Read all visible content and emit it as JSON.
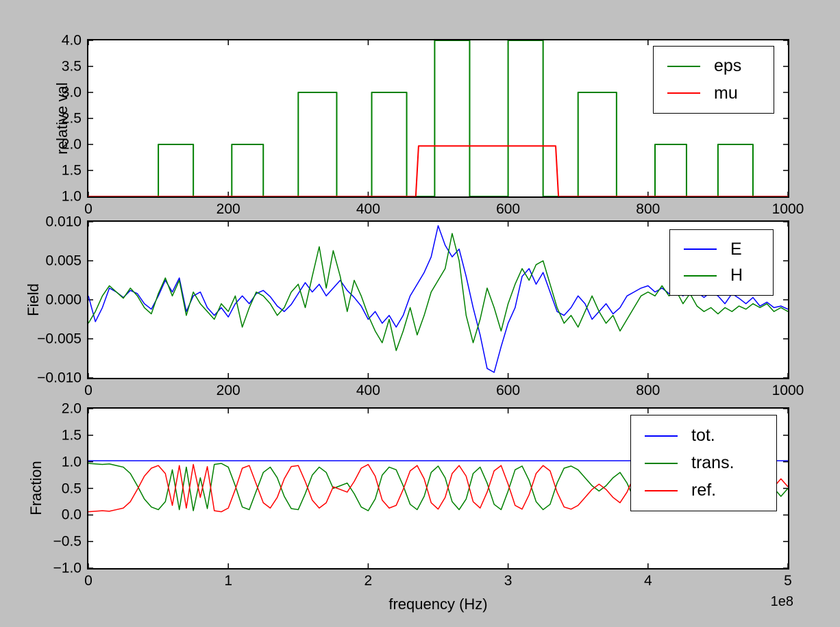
{
  "figure": {
    "background": "#c0c0c0",
    "axes_background": "#ffffff",
    "axis_color": "#000000"
  },
  "chart_data": [
    {
      "type": "line",
      "title": "",
      "ylabel": "relative val",
      "xlabel": "",
      "xlim": [
        0,
        1000
      ],
      "ylim": [
        1.0,
        4.0
      ],
      "grid": false,
      "xticks": [
        0,
        200,
        400,
        600,
        800,
        1000
      ],
      "xtick_labels": [
        "0",
        "200",
        "400",
        "600",
        "800",
        "1000"
      ],
      "yticks": [
        1.0,
        1.5,
        2.0,
        2.5,
        3.0,
        3.5,
        4.0
      ],
      "ytick_labels": [
        "1.0",
        "1.5",
        "2.0",
        "2.5",
        "3.0",
        "3.5",
        "4.0"
      ],
      "legend_position": "upper right",
      "legend": [
        {
          "label": "eps",
          "color": "#008000"
        },
        {
          "label": "mu",
          "color": "#ff0000"
        }
      ],
      "series": [
        {
          "name": "eps",
          "color": "#008000",
          "width": 2,
          "x": [
            0,
            100,
            100,
            150,
            150,
            205,
            205,
            250,
            250,
            300,
            300,
            355,
            355,
            405,
            405,
            455,
            455,
            495,
            495,
            545,
            545,
            600,
            600,
            650,
            650,
            700,
            700,
            755,
            755,
            810,
            810,
            855,
            855,
            900,
            900,
            950,
            950,
            1000
          ],
          "y": [
            1,
            1,
            2,
            2,
            1,
            1,
            2,
            2,
            1,
            1,
            3,
            3,
            1,
            1,
            3,
            3,
            1,
            1,
            4,
            4,
            1,
            1,
            4,
            4,
            1,
            1,
            3,
            3,
            1,
            1,
            2,
            2,
            1,
            1,
            2,
            2,
            1,
            1
          ]
        },
        {
          "name": "mu",
          "color": "#ff0000",
          "width": 2,
          "x": [
            0,
            468,
            472,
            668,
            672,
            1000
          ],
          "y": [
            1,
            1,
            1.97,
            1.97,
            1,
            1
          ]
        }
      ]
    },
    {
      "type": "line",
      "title": "",
      "ylabel": "Field",
      "xlabel": "",
      "xlim": [
        0,
        1000
      ],
      "ylim": [
        -0.01,
        0.01
      ],
      "grid": false,
      "xticks": [
        0,
        200,
        400,
        600,
        800,
        1000
      ],
      "xtick_labels": [
        "0",
        "200",
        "400",
        "600",
        "800",
        "1000"
      ],
      "yticks": [
        -0.01,
        -0.005,
        0,
        0.005,
        0.01
      ],
      "ytick_labels": [
        "−0.010",
        "−0.005",
        "0.000",
        "0.005",
        "0.010"
      ],
      "legend_position": "upper right",
      "legend": [
        {
          "label": "E",
          "color": "#0000ff"
        },
        {
          "label": "H",
          "color": "#008000"
        }
      ],
      "series": [
        {
          "name": "E",
          "color": "#0000ff",
          "width": 1.5,
          "x_start": 0,
          "x_step": 10,
          "y_scale": 0.001,
          "y": [
            0.5,
            -2.8,
            -1.0,
            1.5,
            1.0,
            0.3,
            1.2,
            0.8,
            -0.5,
            -1.2,
            0.5,
            2.5,
            1.0,
            2.8,
            -1.5,
            0.5,
            1.0,
            -1.0,
            -2.0,
            -1.0,
            -2.2,
            -0.5,
            0.5,
            -0.5,
            0.8,
            1.2,
            0.4,
            -0.8,
            -1.5,
            -0.6,
            0.8,
            2.2,
            1.0,
            2.0,
            0.5,
            1.5,
            2.5,
            1.2,
            0.3,
            -0.8,
            -2.5,
            -1.5,
            -3.0,
            -2.0,
            -3.5,
            -2.0,
            0.5,
            2.0,
            3.5,
            5.5,
            9.5,
            7.0,
            5.5,
            6.5,
            3.0,
            -1.0,
            -4.5,
            -8.8,
            -9.3,
            -6.0,
            -3.0,
            -1.0,
            3.0,
            4.0,
            2.0,
            3.5,
            1.0,
            -1.5,
            -2.0,
            -1.0,
            0.5,
            -0.5,
            -2.5,
            -1.5,
            -0.5,
            -1.8,
            -1.0,
            0.5,
            1.0,
            1.5,
            1.8,
            1.0,
            1.5,
            0.8,
            1.2,
            0.5,
            1.5,
            1.0,
            0.3,
            1.0,
            0.5,
            -0.5,
            0.8,
            0.2,
            -0.5,
            0.3,
            -0.8,
            -0.3,
            -1.0,
            -0.8,
            -1.2
          ]
        },
        {
          "name": "H",
          "color": "#008000",
          "width": 1.5,
          "x_start": 0,
          "x_step": 10,
          "y_scale": 0.001,
          "y": [
            -3.0,
            -1.5,
            0.5,
            1.8,
            1.0,
            0.2,
            1.5,
            0.5,
            -1.0,
            -1.8,
            0.8,
            2.8,
            0.5,
            2.5,
            -2.0,
            1.0,
            -0.5,
            -1.5,
            -2.5,
            -0.5,
            -1.5,
            0.5,
            -3.5,
            -1.0,
            1.0,
            0.5,
            -0.5,
            -2.0,
            -1.0,
            1.0,
            2.0,
            -1.0,
            3.0,
            6.8,
            1.5,
            6.3,
            3.0,
            -1.5,
            2.5,
            0.5,
            -2.0,
            -4.0,
            -5.5,
            -2.5,
            -6.5,
            -4.0,
            -1.0,
            -4.5,
            -2.0,
            1.0,
            2.5,
            4.0,
            8.5,
            5.0,
            -2.0,
            -5.5,
            -2.5,
            1.5,
            -1.0,
            -4.0,
            -0.5,
            2.0,
            4.0,
            2.5,
            4.5,
            5.0,
            2.0,
            -1.0,
            -3.0,
            -2.0,
            -3.5,
            -1.5,
            0.5,
            -1.5,
            -3.0,
            -2.0,
            -4.0,
            -2.5,
            -1.0,
            0.5,
            1.0,
            0.5,
            1.8,
            0.5,
            1.2,
            -0.5,
            0.8,
            -0.8,
            -1.5,
            -1.0,
            -1.8,
            -1.0,
            -1.5,
            -0.8,
            -1.2,
            -0.5,
            -1.0,
            -0.5,
            -1.5,
            -1.0,
            -1.5
          ]
        }
      ]
    },
    {
      "type": "line",
      "title": "",
      "ylabel": "Fraction",
      "xlabel": "frequency (Hz)",
      "offset_label": "1e8",
      "xlim": [
        0,
        5
      ],
      "ylim": [
        -1.0,
        2.0
      ],
      "grid": false,
      "xticks": [
        0,
        1,
        2,
        3,
        4,
        5
      ],
      "xtick_labels": [
        "0",
        "1",
        "2",
        "3",
        "4",
        "5"
      ],
      "yticks": [
        -1.0,
        -0.5,
        0,
        0.5,
        1.0,
        1.5,
        2.0
      ],
      "ytick_labels": [
        "−1.0",
        "−0.5",
        "0.0",
        "0.5",
        "1.0",
        "1.5",
        "2.0"
      ],
      "legend_position": "upper right",
      "legend": [
        {
          "label": "tot.",
          "color": "#0000ff"
        },
        {
          "label": "trans.",
          "color": "#008000"
        },
        {
          "label": "ref.",
          "color": "#ff0000"
        }
      ],
      "series": [
        {
          "name": "tot",
          "color": "#0000ff",
          "width": 1.5,
          "x": [
            0,
            5
          ],
          "y": [
            1.02,
            1.02
          ]
        },
        {
          "name": "trans",
          "color": "#008000",
          "width": 1.5,
          "x_start": 0,
          "x_step": 0.05,
          "y": [
            0.97,
            0.96,
            0.95,
            0.96,
            0.93,
            0.9,
            0.78,
            0.55,
            0.3,
            0.15,
            0.1,
            0.25,
            0.85,
            0.1,
            0.9,
            0.08,
            0.7,
            0.12,
            0.95,
            0.97,
            0.9,
            0.55,
            0.15,
            0.1,
            0.45,
            0.8,
            0.9,
            0.7,
            0.35,
            0.12,
            0.1,
            0.4,
            0.75,
            0.9,
            0.8,
            0.5,
            0.55,
            0.6,
            0.4,
            0.15,
            0.08,
            0.3,
            0.75,
            0.9,
            0.85,
            0.55,
            0.2,
            0.1,
            0.35,
            0.8,
            0.92,
            0.7,
            0.25,
            0.1,
            0.3,
            0.78,
            0.9,
            0.6,
            0.2,
            0.1,
            0.45,
            0.85,
            0.92,
            0.65,
            0.25,
            0.1,
            0.2,
            0.6,
            0.88,
            0.92,
            0.85,
            0.7,
            0.55,
            0.45,
            0.55,
            0.7,
            0.8,
            0.6,
            0.3,
            0.12,
            0.1,
            0.35,
            0.7,
            0.85,
            0.75,
            0.5,
            0.25,
            0.12,
            0.2,
            0.55,
            0.8,
            0.88,
            0.7,
            0.45,
            0.25,
            0.15,
            0.3,
            0.55,
            0.5,
            0.35,
            0.5
          ]
        },
        {
          "name": "ref",
          "color": "#ff0000",
          "width": 1.5,
          "x_start": 0,
          "x_step": 0.05,
          "y": [
            0.06,
            0.07,
            0.08,
            0.07,
            0.1,
            0.13,
            0.25,
            0.48,
            0.73,
            0.88,
            0.93,
            0.78,
            0.18,
            0.93,
            0.13,
            0.95,
            0.33,
            0.91,
            0.08,
            0.06,
            0.13,
            0.48,
            0.88,
            0.93,
            0.58,
            0.23,
            0.13,
            0.33,
            0.68,
            0.91,
            0.93,
            0.63,
            0.28,
            0.13,
            0.23,
            0.53,
            0.48,
            0.43,
            0.63,
            0.88,
            0.95,
            0.73,
            0.28,
            0.13,
            0.18,
            0.48,
            0.83,
            0.93,
            0.68,
            0.23,
            0.11,
            0.33,
            0.78,
            0.93,
            0.73,
            0.25,
            0.13,
            0.43,
            0.83,
            0.93,
            0.58,
            0.18,
            0.11,
            0.38,
            0.78,
            0.93,
            0.83,
            0.43,
            0.15,
            0.11,
            0.18,
            0.33,
            0.48,
            0.58,
            0.48,
            0.33,
            0.23,
            0.43,
            0.73,
            0.91,
            0.93,
            0.68,
            0.33,
            0.18,
            0.28,
            0.53,
            0.78,
            0.91,
            0.83,
            0.48,
            0.23,
            0.15,
            0.33,
            0.58,
            0.78,
            0.88,
            0.73,
            0.48,
            0.53,
            0.68,
            0.53
          ]
        }
      ]
    }
  ]
}
